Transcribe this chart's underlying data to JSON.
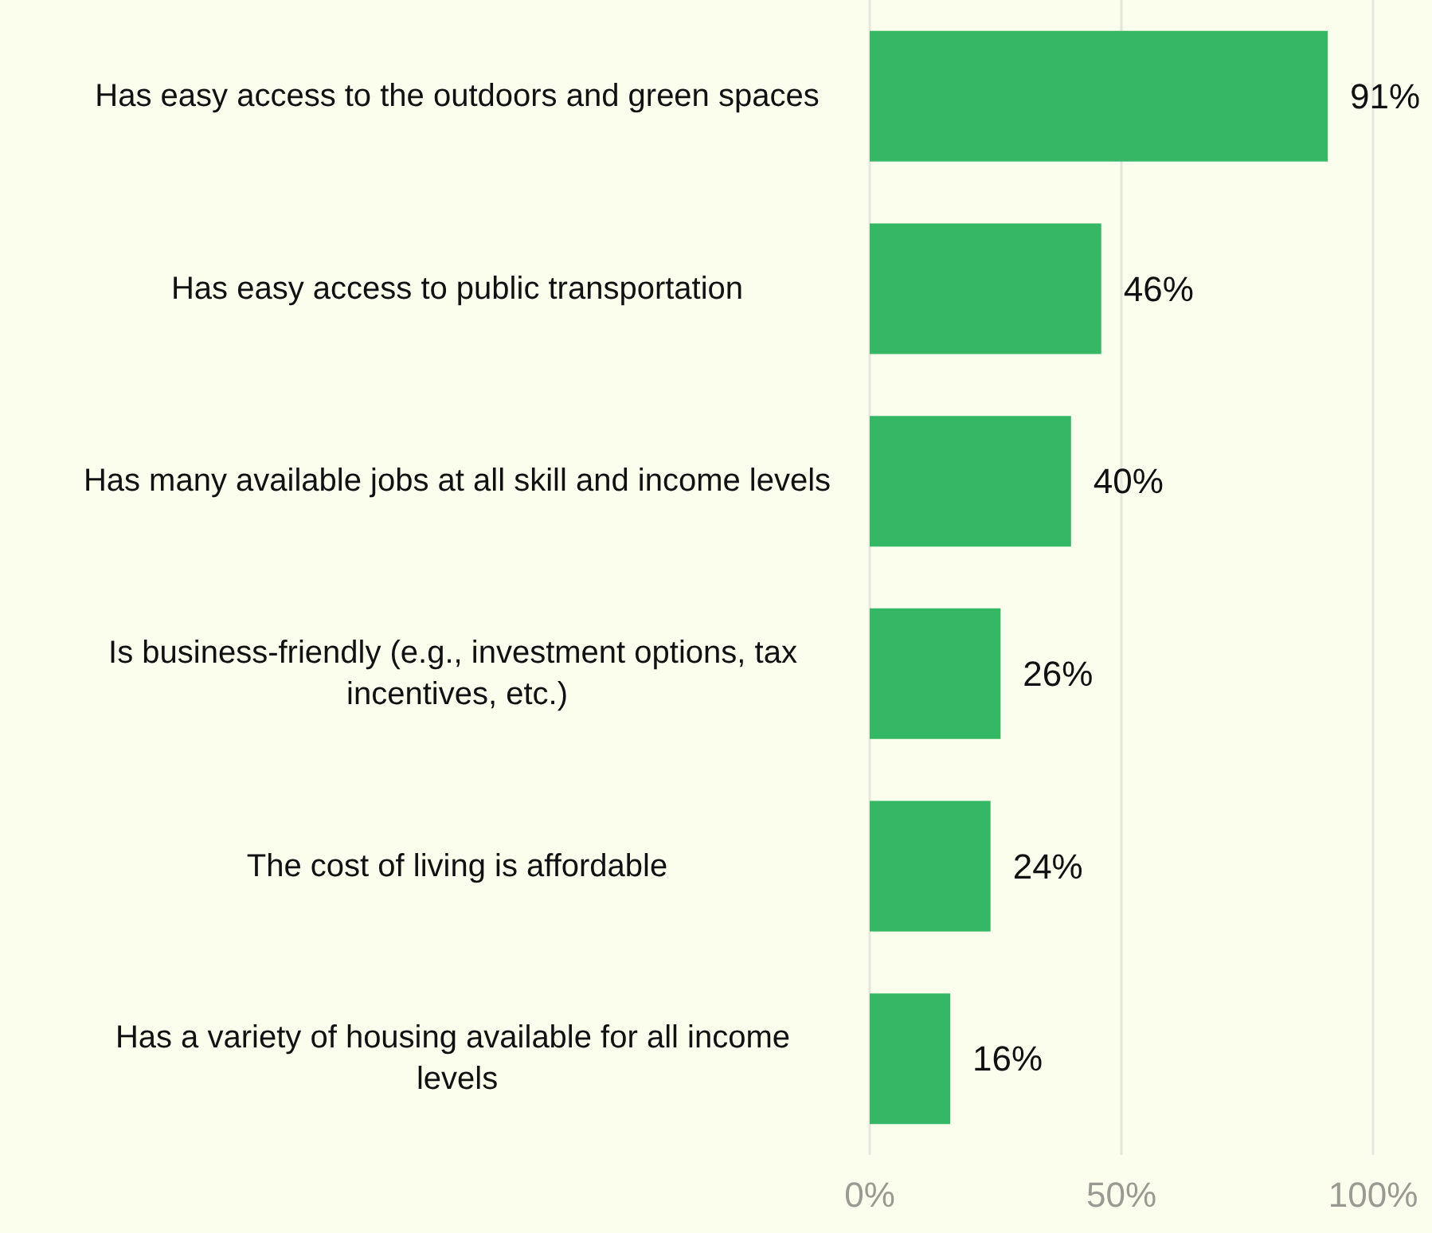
{
  "chart_data": {
    "type": "bar",
    "orientation": "horizontal",
    "categories": [
      "Has easy access to the outdoors and green spaces",
      "Has easy access to public transportation",
      "Has many available jobs at all skill and income levels",
      "Is business-friendly (e.g., investment options, tax incentives, etc.)",
      "The cost of living is affordable",
      "Has a variety of housing available for all income levels"
    ],
    "values": [
      91,
      46,
      40,
      26,
      24,
      16
    ],
    "value_labels": [
      "91%",
      "46%",
      "40%",
      "26%",
      "24%",
      "16%"
    ],
    "color": "#34b866",
    "xlim": [
      0,
      100
    ],
    "xticks": [
      {
        "value": 0,
        "label": "0%"
      },
      {
        "value": 50,
        "label": "50%"
      },
      {
        "value": 100,
        "label": "100%"
      }
    ],
    "grid": "x"
  }
}
